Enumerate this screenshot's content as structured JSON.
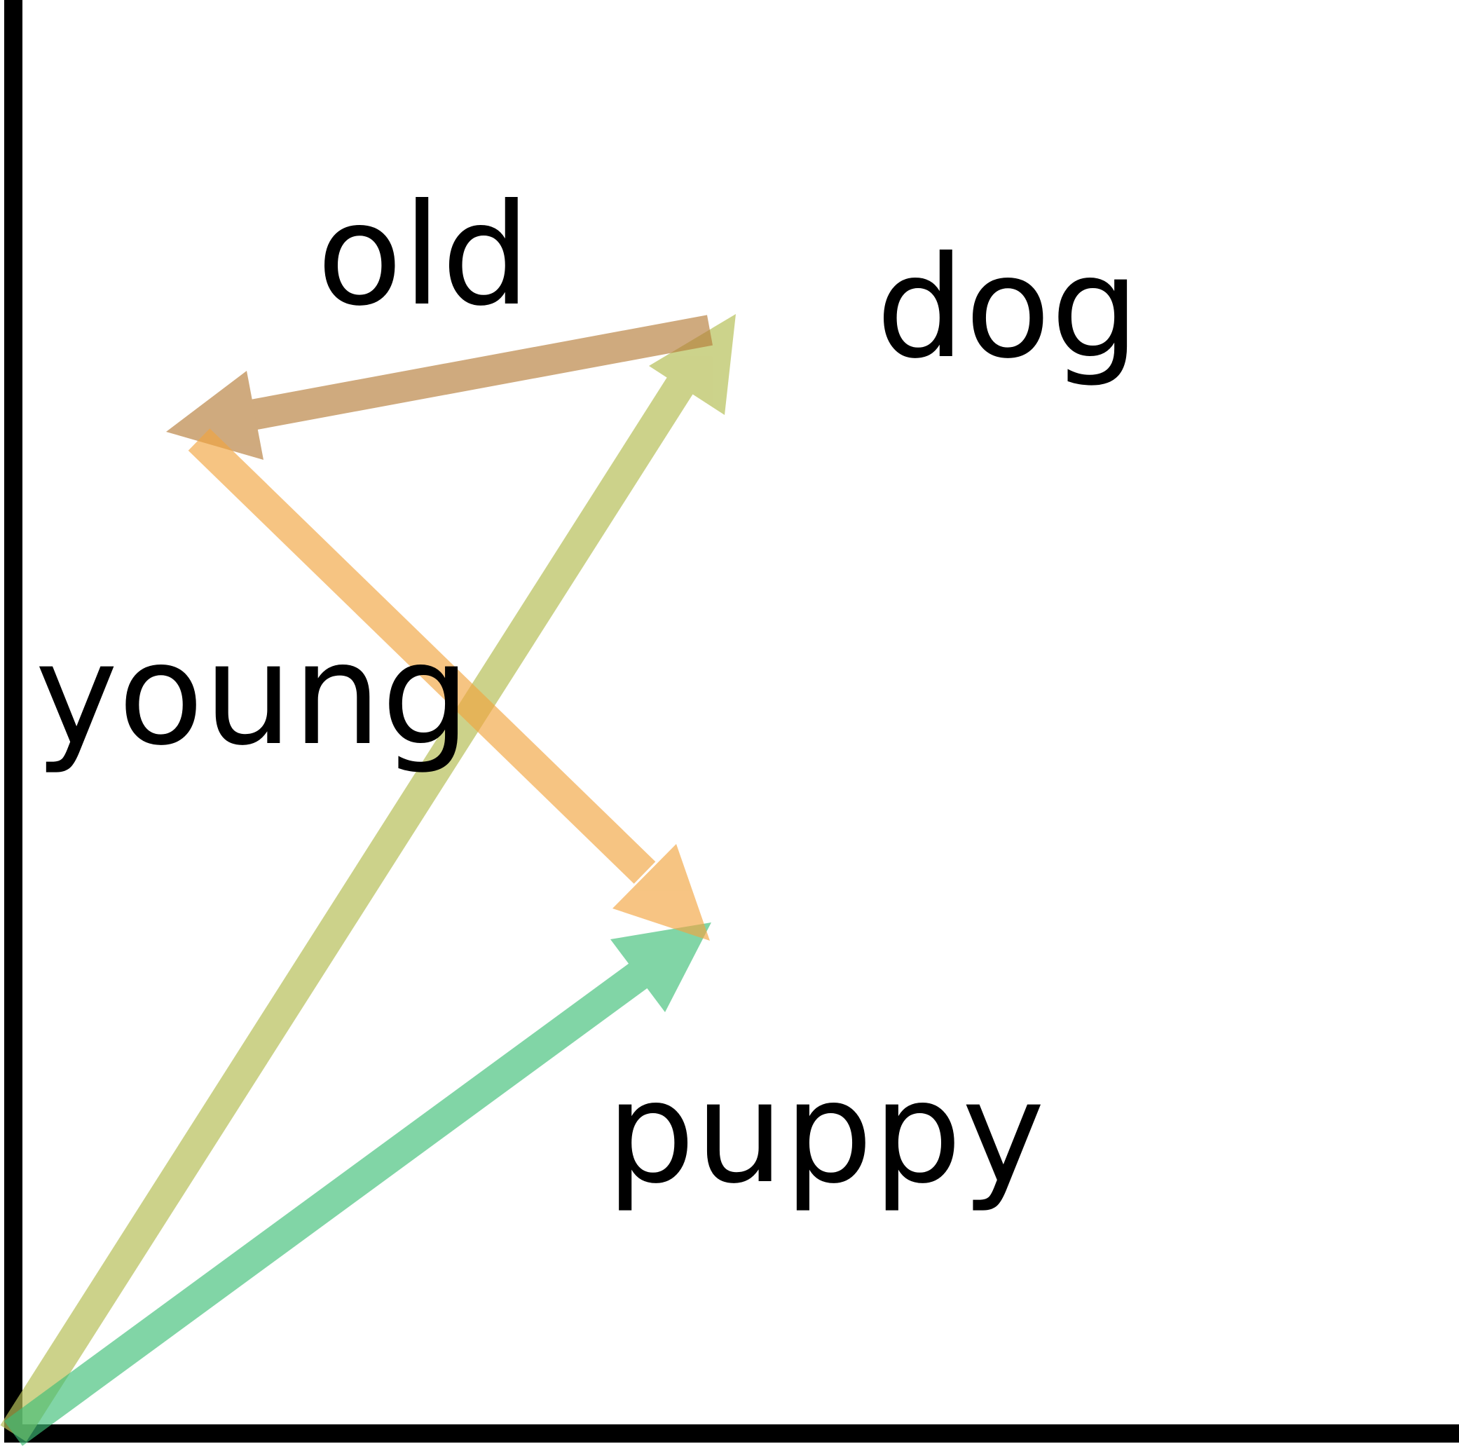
{
  "labels": {
    "old": "old",
    "dog": "dog",
    "young": "young",
    "puppy": "puppy"
  },
  "vectors": [
    {
      "id": "dog-vector",
      "from": "origin",
      "to": "dog",
      "color": "#b7c05a"
    },
    {
      "id": "puppy-vector",
      "from": "origin",
      "to": "puppy",
      "color": "#3fbf78"
    },
    {
      "id": "dog-to-old-vector",
      "from": "dog",
      "to": "old",
      "color": "#b67d3a"
    },
    {
      "id": "young-to-puppy-vector",
      "from": "young",
      "to": "puppy",
      "color": "#f2a540"
    }
  ],
  "colors": {
    "axis": "#000000",
    "background": "#ffffff"
  }
}
